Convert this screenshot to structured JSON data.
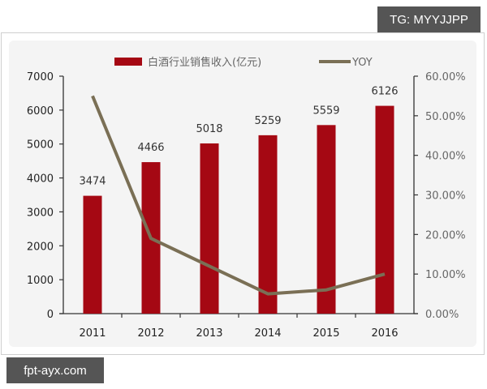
{
  "watermarks": {
    "top_right": "TG: MYYJJPP",
    "bottom_left": "fpt-ayx.com"
  },
  "colors": {
    "bar": "#a50813",
    "line": "#7a6f55",
    "panel_bg": "#f4f4f4",
    "tag_bg": "#555555"
  },
  "legend": {
    "bar_label": "白酒行业销售收入(亿元)",
    "line_label": "YOY"
  },
  "chart_data": {
    "type": "bar+line",
    "title": "",
    "xlabel": "",
    "ylabel": "白酒行业销售收入(亿元)",
    "y2label": "YOY",
    "categories": [
      "2011",
      "2012",
      "2013",
      "2014",
      "2015",
      "2016"
    ],
    "series": [
      {
        "name": "白酒行业销售收入(亿元)",
        "type": "bar",
        "axis": "left",
        "values": [
          3474,
          4466,
          5018,
          5259,
          5559,
          6126
        ]
      },
      {
        "name": "YOY",
        "type": "line",
        "axis": "right",
        "values": [
          0.55,
          0.19,
          0.12,
          0.05,
          0.06,
          0.1
        ]
      }
    ],
    "ylim": [
      0,
      7000
    ],
    "y2lim": [
      0,
      0.6
    ],
    "y_ticks": [
      "0",
      "1000",
      "2000",
      "3000",
      "4000",
      "5000",
      "6000",
      "7000"
    ],
    "y2_ticks": [
      "0.00%",
      "10.00%",
      "20.00%",
      "30.00%",
      "40.00%",
      "50.00%",
      "60.00%"
    ],
    "bar_labels": [
      "3474",
      "4466",
      "5018",
      "5259",
      "5559",
      "6126"
    ],
    "legend_position": "top",
    "grid": false
  }
}
